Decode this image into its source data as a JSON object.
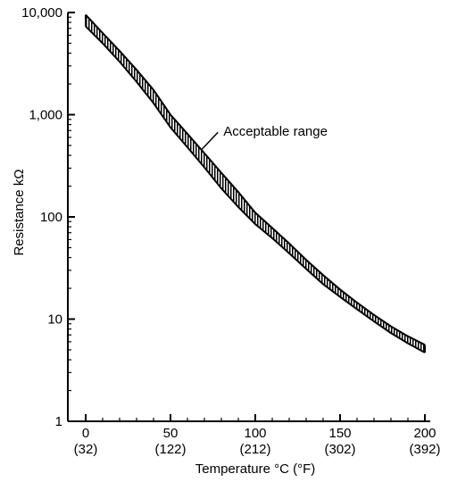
{
  "chart_data": {
    "type": "area",
    "title": "",
    "xlabel": "Temperature °C (°F)",
    "ylabel": "Resistance kΩ",
    "xlim": [
      0,
      200
    ],
    "ylim": [
      1,
      10000
    ],
    "y_scale": "log",
    "grid": false,
    "x_ticks": [
      0,
      50,
      100,
      150,
      200
    ],
    "x_tick_labels": [
      "0",
      "50",
      "100",
      "150",
      "200"
    ],
    "x_tick_sublabels": [
      "(32)",
      "(122)",
      "(212)",
      "(302)",
      "(392)"
    ],
    "y_ticks": [
      1,
      10,
      100,
      1000,
      10000
    ],
    "y_tick_labels": [
      "1",
      "10",
      "100",
      "1,000",
      "10,000"
    ],
    "series": [
      {
        "name": "Acceptable range",
        "x": [
          0,
          10,
          20,
          30,
          40,
          50,
          60,
          70,
          80,
          90,
          100,
          110,
          120,
          130,
          140,
          150,
          160,
          170,
          180,
          190,
          200
        ],
        "upper": [
          9500,
          6300,
          4200,
          2750,
          1750,
          1000,
          650,
          420,
          270,
          175,
          110,
          78,
          55,
          38,
          27,
          19.5,
          14.5,
          11,
          8.5,
          6.8,
          5.6
        ],
        "lower": [
          7300,
          5000,
          3300,
          2100,
          1300,
          750,
          480,
          305,
          190,
          125,
          85,
          62,
          44,
          31,
          22,
          16.5,
          12.5,
          9.5,
          7.3,
          5.8,
          4.7
        ]
      }
    ],
    "annotations": [
      {
        "text": "Acceptable range",
        "x": 68,
        "y": 450,
        "y_text": 700
      }
    ]
  }
}
